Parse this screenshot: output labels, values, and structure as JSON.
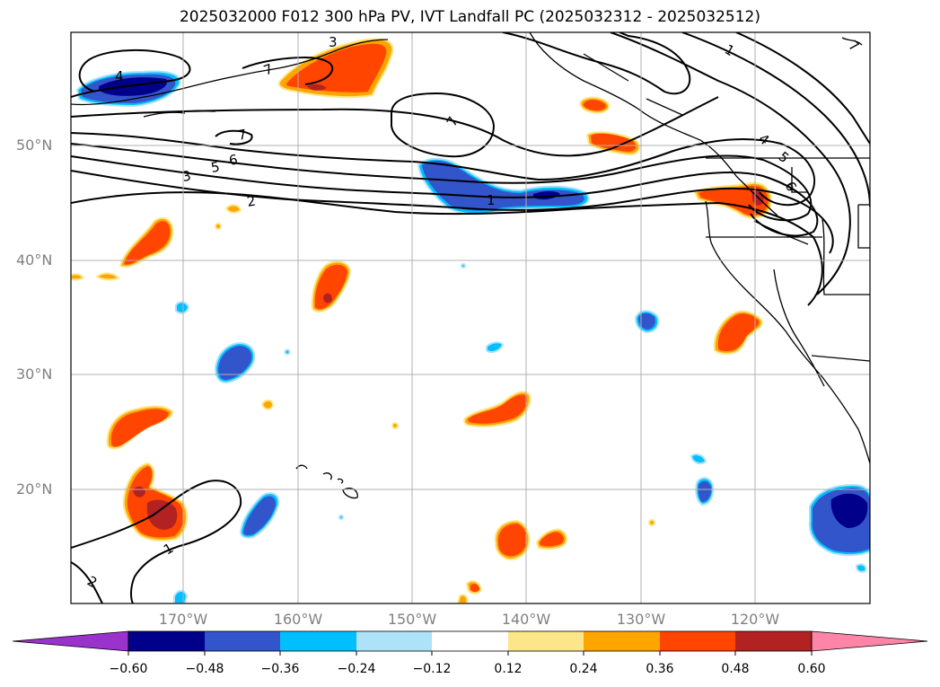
{
  "title": "2025032000 F012 300 hPa PV, IVT Landfall PC (2025032312 - 2025032512)",
  "map": {
    "lat_labels": [
      "50°N",
      "40°N",
      "30°N",
      "20°N"
    ],
    "lon_labels": [
      "170°W",
      "160°W",
      "150°W",
      "140°W",
      "130°W",
      "120°W"
    ],
    "contour_labels": [
      "4",
      "7",
      "3",
      "7",
      "7",
      "6",
      "5",
      "3",
      "2",
      "1",
      "4",
      "5",
      "6",
      "1",
      "2",
      "1",
      "7"
    ]
  },
  "colorbar": {
    "tick_labels": [
      "−0.60",
      "−0.48",
      "−0.36",
      "−0.24",
      "−0.12",
      "0.12",
      "0.24",
      "0.36",
      "0.48",
      "0.60"
    ],
    "colors": {
      "below": "#9933cc",
      "bins": [
        "#00008b",
        "#3355cc",
        "#00bfff",
        "#aee2f8",
        "#ffffff",
        "#fce68a",
        "#ffa500",
        "#ff4500",
        "#b22222"
      ],
      "above": "#ff85a8"
    }
  },
  "colors": {
    "positive_main": "#ff4500",
    "positive_edge": "#ffa500",
    "positive_light": "#fce68a",
    "positive_strong": "#b22222",
    "negative_main": "#3355cc",
    "negative_edge": "#00bfff",
    "negative_strong": "#00008b",
    "gridline": "#b0b0b0"
  }
}
